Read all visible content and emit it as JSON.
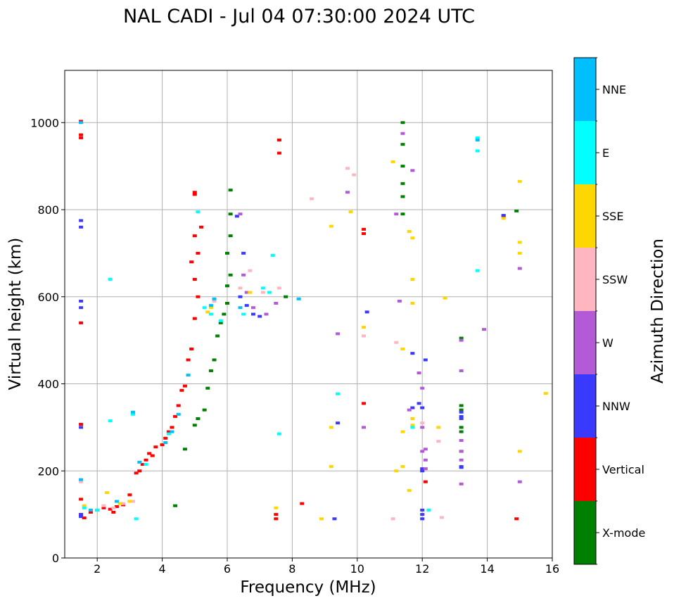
{
  "chart_data": {
    "type": "scatter",
    "title": "NAL CADI - Jul 04 07:30:00 2024 UTC",
    "xlabel": "Frequency (MHz)",
    "ylabel": "Virtual height (km)",
    "xlim": [
      1,
      16
    ],
    "ylim": [
      0,
      1120
    ],
    "xticks": [
      2,
      4,
      6,
      8,
      10,
      12,
      14,
      16
    ],
    "yticks": [
      0,
      200,
      400,
      600,
      800,
      1000
    ],
    "grid": true,
    "colorbar": {
      "title": "Azimuth Direction",
      "placement": "right",
      "categories": [
        {
          "label": "X-mode",
          "color": "#008000"
        },
        {
          "label": "Vertical",
          "color": "#ff0000"
        },
        {
          "label": "NNW",
          "color": "#3a3aff"
        },
        {
          "label": "W",
          "color": "#b35ad6"
        },
        {
          "label": "SSW",
          "color": "#ffb6c1"
        },
        {
          "label": "SSE",
          "color": "#ffd700"
        },
        {
          "label": "E",
          "color": "#00ffff"
        },
        {
          "label": "NNE",
          "color": "#00bfff"
        }
      ]
    },
    "series": [
      {
        "name": "Vertical",
        "points": [
          [
            1.5,
            1003
          ],
          [
            1.5,
            972
          ],
          [
            1.5,
            965
          ],
          [
            1.5,
            540
          ],
          [
            1.5,
            307
          ],
          [
            1.5,
            135
          ],
          [
            1.5,
            100
          ],
          [
            1.6,
            92
          ],
          [
            1.8,
            105
          ],
          [
            2.0,
            110
          ],
          [
            2.2,
            115
          ],
          [
            2.4,
            112
          ],
          [
            2.5,
            105
          ],
          [
            2.6,
            118
          ],
          [
            2.8,
            122
          ],
          [
            3.0,
            145
          ],
          [
            3.2,
            195
          ],
          [
            3.3,
            200
          ],
          [
            3.4,
            215
          ],
          [
            3.5,
            225
          ],
          [
            3.6,
            240
          ],
          [
            3.7,
            235
          ],
          [
            3.8,
            255
          ],
          [
            4.0,
            260
          ],
          [
            4.1,
            275
          ],
          [
            4.2,
            290
          ],
          [
            4.3,
            300
          ],
          [
            4.4,
            325
          ],
          [
            4.5,
            350
          ],
          [
            4.6,
            385
          ],
          [
            4.7,
            395
          ],
          [
            4.8,
            455
          ],
          [
            4.9,
            480
          ],
          [
            5.0,
            550
          ],
          [
            5.1,
            600
          ],
          [
            5.0,
            640
          ],
          [
            4.9,
            680
          ],
          [
            5.1,
            700
          ],
          [
            5.0,
            740
          ],
          [
            5.2,
            760
          ],
          [
            5.0,
            840
          ],
          [
            5.0,
            835
          ],
          [
            7.6,
            960
          ],
          [
            7.6,
            930
          ],
          [
            7.5,
            90
          ],
          [
            7.5,
            100
          ],
          [
            8.3,
            125
          ],
          [
            10.2,
            755
          ],
          [
            10.2,
            745
          ],
          [
            10.2,
            355
          ],
          [
            12.1,
            175
          ],
          [
            14.9,
            90
          ],
          [
            14.5,
            785
          ]
        ]
      },
      {
        "name": "X-mode",
        "points": [
          [
            4.4,
            120
          ],
          [
            4.7,
            250
          ],
          [
            5.0,
            305
          ],
          [
            5.1,
            320
          ],
          [
            5.3,
            340
          ],
          [
            5.4,
            390
          ],
          [
            5.5,
            430
          ],
          [
            5.6,
            455
          ],
          [
            5.7,
            510
          ],
          [
            5.8,
            540
          ],
          [
            5.9,
            560
          ],
          [
            6.0,
            585
          ],
          [
            6.0,
            625
          ],
          [
            6.1,
            650
          ],
          [
            6.0,
            700
          ],
          [
            6.1,
            740
          ],
          [
            6.1,
            790
          ],
          [
            6.1,
            845
          ],
          [
            7.8,
            600
          ],
          [
            11.4,
            1000
          ],
          [
            11.4,
            950
          ],
          [
            11.4,
            900
          ],
          [
            11.4,
            860
          ],
          [
            11.4,
            830
          ],
          [
            11.4,
            790
          ],
          [
            13.2,
            505
          ],
          [
            13.2,
            350
          ],
          [
            13.2,
            340
          ],
          [
            13.2,
            300
          ],
          [
            13.2,
            290
          ],
          [
            13.2,
            245
          ],
          [
            14.9,
            797
          ]
        ]
      },
      {
        "name": "NNW",
        "points": [
          [
            1.5,
            775
          ],
          [
            1.5,
            760
          ],
          [
            1.5,
            590
          ],
          [
            1.5,
            575
          ],
          [
            1.5,
            300
          ],
          [
            1.5,
            100
          ],
          [
            1.5,
            95
          ],
          [
            6.3,
            785
          ],
          [
            6.5,
            700
          ],
          [
            6.4,
            600
          ],
          [
            6.6,
            580
          ],
          [
            6.8,
            560
          ],
          [
            7.0,
            555
          ],
          [
            10.3,
            565
          ],
          [
            9.4,
            310
          ],
          [
            9.3,
            90
          ],
          [
            11.7,
            470
          ],
          [
            12.0,
            110
          ],
          [
            12.0,
            100
          ],
          [
            12.0,
            90
          ],
          [
            12.0,
            205
          ],
          [
            12.0,
            200
          ],
          [
            12.1,
            455
          ],
          [
            13.2,
            335
          ],
          [
            13.2,
            325
          ],
          [
            13.2,
            320
          ],
          [
            13.2,
            210
          ],
          [
            13.2,
            208
          ],
          [
            14.5,
            787
          ],
          [
            11.7,
            345
          ],
          [
            11.9,
            355
          ],
          [
            12.0,
            345
          ]
        ]
      },
      {
        "name": "W",
        "points": [
          [
            6.4,
            790
          ],
          [
            6.5,
            650
          ],
          [
            6.6,
            610
          ],
          [
            6.8,
            575
          ],
          [
            7.2,
            560
          ],
          [
            7.5,
            585
          ],
          [
            9.7,
            840
          ],
          [
            9.4,
            515
          ],
          [
            10.2,
            300
          ],
          [
            11.4,
            975
          ],
          [
            11.7,
            890
          ],
          [
            11.2,
            790
          ],
          [
            11.3,
            590
          ],
          [
            11.6,
            340
          ],
          [
            11.9,
            425
          ],
          [
            12.0,
            390
          ],
          [
            12.0,
            300
          ],
          [
            12.1,
            250
          ],
          [
            12.0,
            245
          ],
          [
            12.1,
            225
          ],
          [
            12.1,
            205
          ],
          [
            13.2,
            500
          ],
          [
            13.2,
            430
          ],
          [
            13.2,
            270
          ],
          [
            13.2,
            245
          ],
          [
            13.2,
            225
          ],
          [
            13.2,
            170
          ],
          [
            13.9,
            525
          ],
          [
            15.0,
            665
          ],
          [
            15.0,
            175
          ]
        ]
      },
      {
        "name": "SSW",
        "points": [
          [
            1.5,
            175
          ],
          [
            2.2,
            120
          ],
          [
            2.5,
            115
          ],
          [
            2.8,
            125
          ],
          [
            3.1,
            130
          ],
          [
            5.6,
            590
          ],
          [
            6.4,
            620
          ],
          [
            6.7,
            660
          ],
          [
            7.1,
            610
          ],
          [
            7.6,
            620
          ],
          [
            8.6,
            825
          ],
          [
            9.7,
            895
          ],
          [
            9.9,
            880
          ],
          [
            10.2,
            510
          ],
          [
            11.1,
            90
          ],
          [
            11.2,
            495
          ],
          [
            12.5,
            268
          ],
          [
            12.6,
            93
          ],
          [
            12.0,
            310
          ]
        ]
      },
      {
        "name": "SSE",
        "points": [
          [
            1.6,
            120
          ],
          [
            2.3,
            150
          ],
          [
            2.7,
            125
          ],
          [
            3.0,
            130
          ],
          [
            5.4,
            565
          ],
          [
            5.5,
            575
          ],
          [
            6.7,
            610
          ],
          [
            7.5,
            115
          ],
          [
            9.2,
            762
          ],
          [
            9.2,
            300
          ],
          [
            9.2,
            210
          ],
          [
            8.9,
            90
          ],
          [
            9.8,
            795
          ],
          [
            10.2,
            530
          ],
          [
            11.1,
            910
          ],
          [
            11.4,
            480
          ],
          [
            11.4,
            290
          ],
          [
            11.2,
            200
          ],
          [
            11.4,
            210
          ],
          [
            11.6,
            155
          ],
          [
            11.6,
            750
          ],
          [
            11.7,
            735
          ],
          [
            11.7,
            640
          ],
          [
            11.7,
            585
          ],
          [
            11.7,
            320
          ],
          [
            11.7,
            305
          ],
          [
            12.5,
            300
          ],
          [
            12.7,
            597
          ],
          [
            14.5,
            780
          ],
          [
            15.0,
            865
          ],
          [
            15.0,
            725
          ],
          [
            15.0,
            700
          ],
          [
            15.0,
            245
          ],
          [
            15.8,
            378
          ]
        ]
      },
      {
        "name": "E",
        "points": [
          [
            1.6,
            115
          ],
          [
            2.0,
            110
          ],
          [
            2.4,
            640
          ],
          [
            2.4,
            315
          ],
          [
            3.1,
            330
          ],
          [
            3.2,
            90
          ],
          [
            3.5,
            215
          ],
          [
            4.2,
            285
          ],
          [
            5.1,
            795
          ],
          [
            5.3,
            575
          ],
          [
            5.5,
            560
          ],
          [
            5.8,
            545
          ],
          [
            6.5,
            560
          ],
          [
            7.1,
            620
          ],
          [
            7.4,
            695
          ],
          [
            7.3,
            610
          ],
          [
            7.6,
            285
          ],
          [
            9.4,
            377
          ],
          [
            11.7,
            300
          ],
          [
            12.2,
            110
          ],
          [
            13.7,
            965
          ],
          [
            13.7,
            935
          ],
          [
            13.7,
            660
          ]
        ]
      },
      {
        "name": "NNE",
        "points": [
          [
            1.5,
            1000
          ],
          [
            1.5,
            180
          ],
          [
            1.8,
            110
          ],
          [
            2.6,
            130
          ],
          [
            3.1,
            335
          ],
          [
            3.3,
            220
          ],
          [
            4.1,
            265
          ],
          [
            4.3,
            290
          ],
          [
            4.5,
            330
          ],
          [
            4.8,
            420
          ],
          [
            5.5,
            580
          ],
          [
            5.6,
            595
          ],
          [
            6.4,
            575
          ],
          [
            8.2,
            595
          ],
          [
            13.7,
            960
          ]
        ]
      }
    ]
  }
}
